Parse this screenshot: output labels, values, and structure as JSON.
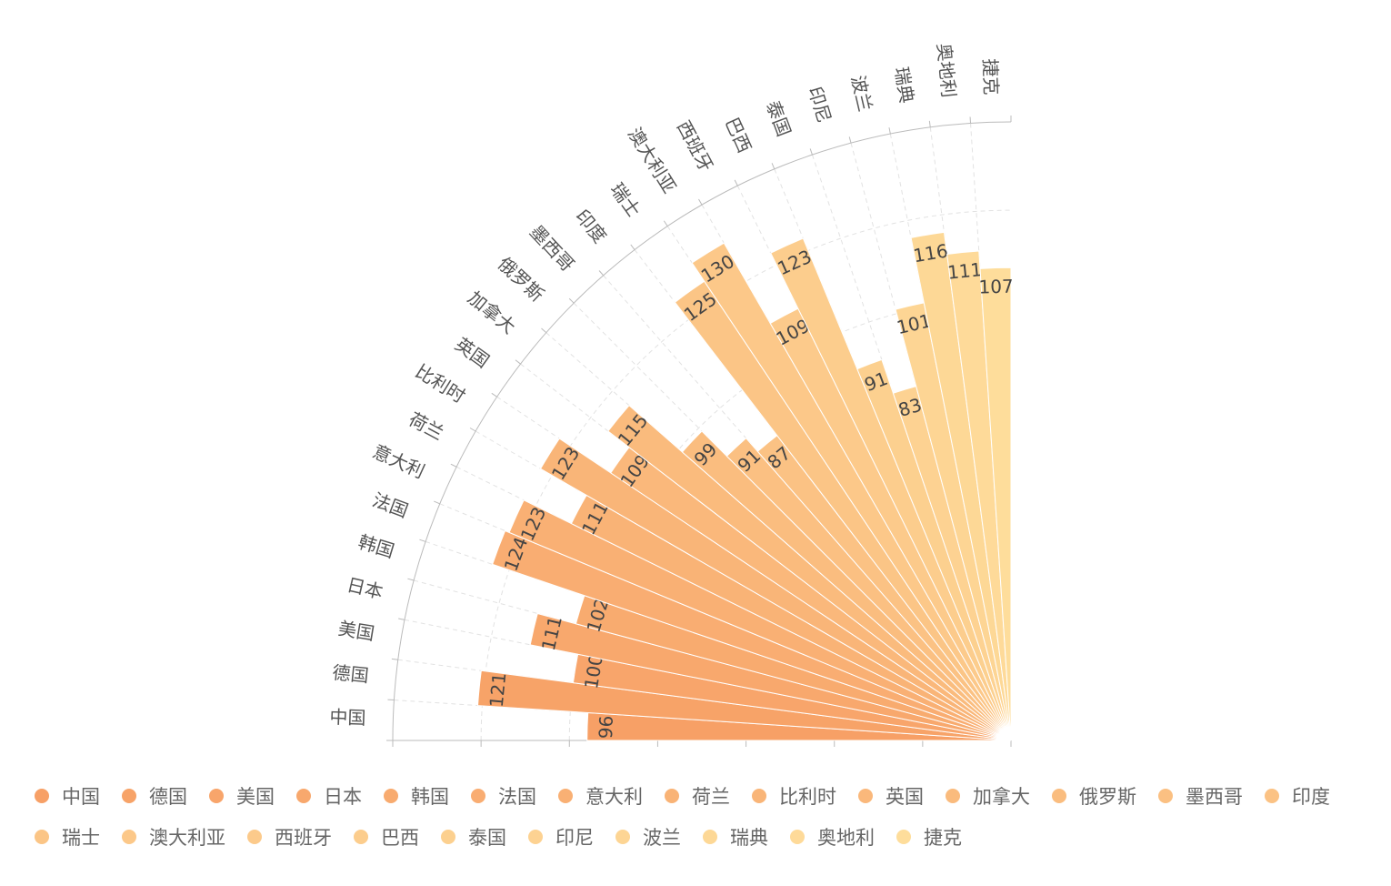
{
  "chart_data": {
    "type": "polar-bar",
    "categories": [
      "中国",
      "德国",
      "美国",
      "日本",
      "韩国",
      "法国",
      "意大利",
      "荷兰",
      "比利时",
      "英国",
      "加拿大",
      "俄罗斯",
      "墨西哥",
      "印度",
      "瑞士",
      "澳大利亚",
      "西班牙",
      "巴西",
      "泰国",
      "印尼",
      "波兰",
      "瑞典",
      "奥地利",
      "捷克"
    ],
    "values": [
      96,
      121,
      100,
      111,
      102,
      124,
      123,
      111,
      123,
      109,
      115,
      99,
      91,
      87,
      125,
      130,
      109,
      123,
      91,
      83,
      101,
      116,
      111,
      107
    ],
    "colors": [
      "#f7a066",
      "#f7a368",
      "#f8a56b",
      "#f8a86d",
      "#f8ab6f",
      "#f9ad72",
      "#f9b074",
      "#f9b376",
      "#f9b578",
      "#fab87b",
      "#fabb7d",
      "#fabd7f",
      "#fbc082",
      "#fbc284",
      "#fbc586",
      "#fcc889",
      "#fcca8b",
      "#fccd8d",
      "#fcd08f",
      "#fdd292",
      "#fdd594",
      "#fdd896",
      "#feda99",
      "#fedd9b"
    ],
    "rlim": [
      0,
      140
    ],
    "rticks": [
      0,
      20,
      40,
      60,
      80,
      100,
      120,
      140
    ],
    "grid": true,
    "legend": "bottom"
  }
}
